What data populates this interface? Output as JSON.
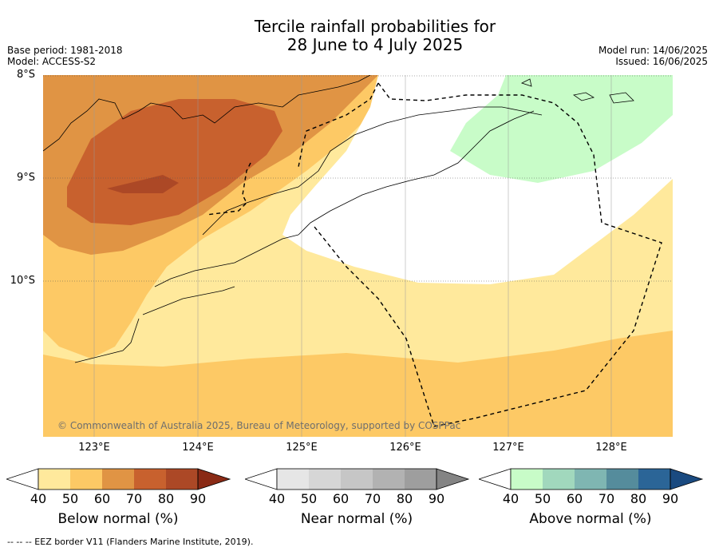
{
  "title": {
    "line1": "Tercile rainfall probabilities for",
    "line2": "28 June to 4 July 2025"
  },
  "meta": {
    "base_period": "Base period: 1981-2018",
    "model": "Model: ACCESS-S2",
    "model_run": "Model run: 14/06/2025",
    "issued": "Issued: 16/06/2025"
  },
  "map": {
    "lat_labels": [
      "8°S",
      "9°S",
      "10°S"
    ],
    "lon_labels": [
      "123°E",
      "124°E",
      "125°E",
      "126°E",
      "127°E",
      "128°E"
    ],
    "lat_range": [
      -11.5,
      -8.0
    ],
    "lon_range": [
      122.5,
      128.6
    ],
    "gridlines": "dotted",
    "copyright": "© Commonwealth of Australia 2025, Bureau of Meteorology, supported by COSPPac"
  },
  "colorbars": [
    {
      "label": "Below normal (%)",
      "ticks": [
        "40",
        "50",
        "60",
        "70",
        "80",
        "90"
      ],
      "colors": [
        "#ffffff",
        "#ffe99c",
        "#fdc965",
        "#e09444",
        "#c8612e",
        "#ac4826",
        "#8a2a15"
      ]
    },
    {
      "label": "Near normal (%)",
      "ticks": [
        "40",
        "50",
        "60",
        "70",
        "80",
        "90"
      ],
      "colors": [
        "#ffffff",
        "#e6e6e6",
        "#d6d6d6",
        "#c6c6c6",
        "#b2b2b2",
        "#9e9e9e",
        "#848484"
      ]
    },
    {
      "label": "Above normal (%)",
      "ticks": [
        "40",
        "50",
        "60",
        "70",
        "80",
        "90"
      ],
      "colors": [
        "#ffffff",
        "#c8fcc8",
        "#a1d8bd",
        "#7fb6b2",
        "#558c9c",
        "#2b6597",
        "#1a4a80"
      ]
    }
  ],
  "footer": "--  --  -- EEZ border V11 (Flanders Marine Institute, 2019)."
}
